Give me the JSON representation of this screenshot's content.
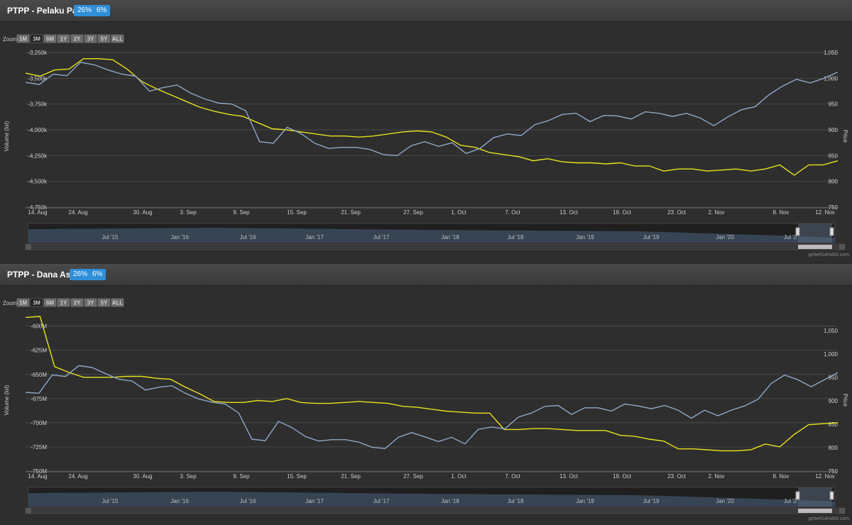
{
  "colors": {
    "volume": "#e8e11d",
    "price": "#8ea7c8",
    "badge": "#2f8fd8",
    "grid": "#555555"
  },
  "zoom": {
    "label": "Zoom",
    "buttons": [
      "1M",
      "3M",
      "6M",
      "1Y",
      "2Y",
      "3Y",
      "5Y",
      "ALL"
    ],
    "active": "3M"
  },
  "navigator_labels": [
    "Jul '15",
    "Jan '16",
    "Jul '16",
    "Jan '17",
    "Jul '17",
    "Jan '18",
    "Jul '18",
    "Jan '19",
    "Jul '19",
    "Jan '20",
    "Jul '2"
  ],
  "credit": "gebetSAHAM.com",
  "panels": [
    {
      "title": "PTPP - Pelaku Pasar",
      "badges": [
        "26%",
        "6%"
      ],
      "chart_data": {
        "type": "line",
        "ylabel": "Volume (lot)",
        "y2label": "Price",
        "x_tick_labels": [
          "14. Aug",
          "24. Aug",
          "30. Aug",
          "3. Sep",
          "9. Sep",
          "15. Sep",
          "21. Sep",
          "27. Sep",
          "1. Oct",
          "7. Oct",
          "13. Oct",
          "19. Oct",
          "23. Oct",
          "2. Nov",
          "8. Nov",
          "12. Nov"
        ],
        "y_left_ticks": [
          "-3,250k",
          "-3,500k",
          "-3,750k",
          "-4,000k",
          "-4,250k",
          "-4,500k",
          "-4,750k"
        ],
        "y_left_values": [
          -3250,
          -3500,
          -3750,
          -4000,
          -4250,
          -4500,
          -4750
        ],
        "ylim_left": [
          -4750,
          -3250
        ],
        "y_right_ticks": [
          "1,050",
          "1,000",
          "950",
          "900",
          "850",
          "800",
          "750"
        ],
        "y_right_values": [
          1050,
          1000,
          950,
          900,
          850,
          800,
          750
        ],
        "ylim_right": [
          750,
          1050
        ],
        "series": [
          {
            "axis": "left",
            "values": [
              -3450,
              -3480,
              -3420,
              -3410,
              -3310,
              -3310,
              -3320,
              -3410,
              -3530,
              -3600,
              -3660,
              -3720,
              -3780,
              -3820,
              -3850,
              -3870,
              -3930,
              -3990,
              -4000,
              -4020,
              -4040,
              -4060,
              -4060,
              -4070,
              -4060,
              -4040,
              -4020,
              -4010,
              -4020,
              -4070,
              -4150,
              -4170,
              -4220,
              -4240,
              -4260,
              -4300,
              -4280,
              -4310,
              -4320,
              -4320,
              -4330,
              -4320,
              -4350,
              -4350,
              -4400,
              -4380,
              -4380,
              -4400,
              -4390,
              -4380,
              -4400,
              -4380,
              -4340,
              -4440,
              -4340,
              -4340,
              -4300
            ]
          },
          {
            "axis": "right",
            "values": [
              992,
              988,
              1008,
              1005,
              1031,
              1026,
              1016,
              1008,
              1004,
              975,
              982,
              987,
              971,
              960,
              952,
              950,
              937,
              877,
              874,
              905,
              893,
              874,
              864,
              866,
              866,
              862,
              852,
              850,
              869,
              877,
              868,
              875,
              854,
              864,
              885,
              892,
              889,
              910,
              918,
              930,
              932,
              916,
              928,
              927,
              921,
              935,
              932,
              926,
              932,
              923,
              908,
              925,
              939,
              945,
              968,
              985,
              998,
              991,
              1000,
              1012
            ]
          }
        ]
      }
    },
    {
      "title": "PTPP - Dana Asing",
      "badges": [
        "26%",
        "6%"
      ],
      "chart_data": {
        "type": "line",
        "ylabel": "Volume (lot)",
        "y2label": "Price",
        "x_tick_labels": [
          "14. Aug",
          "24. Aug",
          "30. Aug",
          "3. Sep",
          "9. Sep",
          "15. Sep",
          "21. Sep",
          "27. Sep",
          "1. Oct",
          "7. Oct",
          "13. Oct",
          "19. Oct",
          "23. Oct",
          "2. Nov",
          "8. Nov",
          "12. Nov"
        ],
        "y_left_ticks": [
          "-600M",
          "-625M",
          "-650M",
          "-675M",
          "-700M",
          "-725M",
          "-750M"
        ],
        "y_left_values": [
          -600,
          -625,
          -650,
          -675,
          -700,
          -725,
          -750
        ],
        "ylim_left": [
          -750,
          -590
        ],
        "y_right_ticks": [
          "1,050",
          "1,000",
          "950",
          "900",
          "850",
          "800",
          "750"
        ],
        "y_right_values": [
          1050,
          1000,
          950,
          900,
          850,
          800,
          750
        ],
        "ylim_right": [
          750,
          1080
        ],
        "series": [
          {
            "axis": "left",
            "values": [
              -591,
              -590,
              -642,
              -648,
              -653,
              -653,
              -653,
              -652,
              -652,
              -654,
              -655,
              -663,
              -670,
              -678,
              -679,
              -679,
              -677,
              -678,
              -675,
              -679,
              -680,
              -680,
              -679,
              -678,
              -679,
              -680,
              -683,
              -684,
              -686,
              -688,
              -689,
              -690,
              -690,
              -707,
              -707,
              -706,
              -706,
              -707,
              -708,
              -708,
              -708,
              -713,
              -714,
              -717,
              -719,
              -727,
              -727,
              -728,
              -729,
              -729,
              -728,
              -722,
              -725,
              -712,
              -702,
              -701,
              -700
            ]
          },
          {
            "axis": "right",
            "values": [
              918,
              916,
              955,
              952,
              975,
              971,
              958,
              946,
              942,
              923,
              929,
              932,
              916,
              904,
              897,
              893,
              874,
              818,
              815,
              856,
              843,
              824,
              814,
              817,
              817,
              812,
              801,
              798,
              822,
              832,
              823,
              813,
              822,
              808,
              839,
              844,
              840,
              865,
              874,
              888,
              890,
              871,
              885,
              885,
              878,
              893,
              889,
              883,
              890,
              880,
              863,
              880,
              868,
              880,
              889,
              903,
              937,
              955,
              945,
              930,
              945,
              960
            ]
          }
        ]
      }
    }
  ]
}
